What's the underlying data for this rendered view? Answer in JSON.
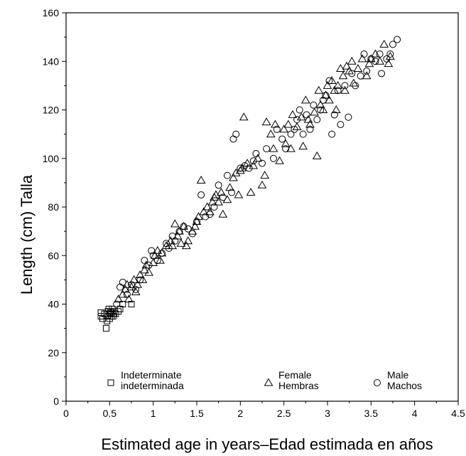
{
  "chart_data": {
    "type": "scatter",
    "title": "",
    "xlabel": "Estimated age in years–Edad estimada en años",
    "ylabel": "Length (cm) Talla",
    "xlim": [
      0,
      4.5
    ],
    "ylim": [
      0,
      160
    ],
    "x_ticks": [
      "0",
      "0.5",
      "1",
      "1.5",
      "2",
      "2.5",
      "3",
      "3.5",
      "4",
      "4.5"
    ],
    "y_ticks": [
      "0",
      "20",
      "40",
      "60",
      "80",
      "100",
      "120",
      "140",
      "160"
    ],
    "grid": false,
    "legend_position": "bottom",
    "series": [
      {
        "name": "Indeterminate indeterminada",
        "legend_lines": [
          "Indeterminate",
          "indeterminada"
        ],
        "marker": "square",
        "points": [
          [
            0.4,
            35
          ],
          [
            0.4,
            36.5
          ],
          [
            0.42,
            34
          ],
          [
            0.44,
            36
          ],
          [
            0.46,
            30
          ],
          [
            0.47,
            33
          ],
          [
            0.48,
            35
          ],
          [
            0.48,
            37
          ],
          [
            0.49,
            38
          ],
          [
            0.5,
            36
          ],
          [
            0.5,
            34
          ],
          [
            0.51,
            37
          ],
          [
            0.52,
            35
          ],
          [
            0.52,
            36.5
          ],
          [
            0.53,
            38
          ],
          [
            0.54,
            35
          ],
          [
            0.55,
            37
          ],
          [
            0.55,
            36
          ],
          [
            0.57,
            36
          ],
          [
            0.6,
            37
          ],
          [
            0.62,
            38
          ],
          [
            0.65,
            40
          ],
          [
            0.75,
            40
          ]
        ]
      },
      {
        "name": "Female Hembras",
        "legend_lines": [
          "Female",
          "Hembras"
        ],
        "marker": "triangle",
        "points": [
          [
            0.6,
            42
          ],
          [
            0.65,
            44
          ],
          [
            0.68,
            46
          ],
          [
            0.7,
            48
          ],
          [
            0.72,
            42
          ],
          [
            0.75,
            47
          ],
          [
            0.78,
            50
          ],
          [
            0.8,
            45
          ],
          [
            0.82,
            48
          ],
          [
            0.85,
            52
          ],
          [
            0.88,
            50
          ],
          [
            0.9,
            54
          ],
          [
            0.92,
            56
          ],
          [
            0.95,
            53
          ],
          [
            1.0,
            57
          ],
          [
            1.02,
            60
          ],
          [
            1.05,
            62
          ],
          [
            1.08,
            58
          ],
          [
            1.1,
            61
          ],
          [
            1.15,
            64
          ],
          [
            1.2,
            66
          ],
          [
            1.22,
            64
          ],
          [
            1.25,
            73
          ],
          [
            1.28,
            68
          ],
          [
            1.3,
            70
          ],
          [
            1.32,
            65
          ],
          [
            1.35,
            72
          ],
          [
            1.38,
            64
          ],
          [
            1.4,
            66
          ],
          [
            1.45,
            70
          ],
          [
            1.48,
            72
          ],
          [
            1.5,
            74
          ],
          [
            1.52,
            76
          ],
          [
            1.55,
            91
          ],
          [
            1.58,
            78
          ],
          [
            1.62,
            80
          ],
          [
            1.65,
            78
          ],
          [
            1.68,
            82
          ],
          [
            1.7,
            84
          ],
          [
            1.72,
            85
          ],
          [
            1.75,
            82
          ],
          [
            1.78,
            86
          ],
          [
            1.8,
            77
          ],
          [
            1.85,
            83
          ],
          [
            1.88,
            88
          ],
          [
            1.92,
            92
          ],
          [
            1.95,
            94
          ],
          [
            1.98,
            85
          ],
          [
            2.0,
            95
          ],
          [
            2.02,
            96
          ],
          [
            2.04,
            117
          ],
          [
            2.08,
            98
          ],
          [
            2.12,
            86
          ],
          [
            2.15,
            97
          ],
          [
            2.2,
            100
          ],
          [
            2.25,
            89
          ],
          [
            2.28,
            93
          ],
          [
            2.3,
            115
          ],
          [
            2.35,
            110
          ],
          [
            2.38,
            104
          ],
          [
            2.4,
            114
          ],
          [
            2.45,
            99
          ],
          [
            2.5,
            112
          ],
          [
            2.52,
            106
          ],
          [
            2.55,
            114
          ],
          [
            2.58,
            104
          ],
          [
            2.6,
            118
          ],
          [
            2.65,
            113
          ],
          [
            2.7,
            117
          ],
          [
            2.72,
            105
          ],
          [
            2.75,
            124
          ],
          [
            2.78,
            116
          ],
          [
            2.8,
            114
          ],
          [
            2.85,
            119
          ],
          [
            2.88,
            101
          ],
          [
            2.9,
            128
          ],
          [
            2.92,
            122
          ],
          [
            2.95,
            120
          ],
          [
            2.98,
            126
          ],
          [
            3.0,
            130
          ],
          [
            3.02,
            124
          ],
          [
            3.05,
            132
          ],
          [
            3.08,
            128
          ],
          [
            3.1,
            120
          ],
          [
            3.12,
            130
          ],
          [
            3.15,
            137
          ],
          [
            3.18,
            134
          ],
          [
            3.2,
            128
          ],
          [
            3.22,
            138
          ],
          [
            3.25,
            136
          ],
          [
            3.28,
            140
          ],
          [
            3.3,
            131
          ],
          [
            3.35,
            137
          ],
          [
            3.4,
            141
          ],
          [
            3.45,
            134
          ],
          [
            3.48,
            139
          ],
          [
            3.5,
            141
          ],
          [
            3.55,
            143
          ],
          [
            3.6,
            140
          ],
          [
            3.65,
            147
          ],
          [
            3.7,
            139
          ],
          [
            3.72,
            142
          ]
        ]
      },
      {
        "name": "Male Machos",
        "legend_lines": [
          "Male",
          "Machos"
        ],
        "marker": "circle",
        "points": [
          [
            0.58,
            40
          ],
          [
            0.62,
            47
          ],
          [
            0.65,
            49
          ],
          [
            0.7,
            44
          ],
          [
            0.75,
            48
          ],
          [
            0.8,
            46
          ],
          [
            0.85,
            50
          ],
          [
            0.9,
            58
          ],
          [
            0.95,
            56
          ],
          [
            0.98,
            62
          ],
          [
            1.0,
            60
          ],
          [
            1.05,
            58
          ],
          [
            1.1,
            61
          ],
          [
            1.15,
            65
          ],
          [
            1.18,
            63
          ],
          [
            1.22,
            68
          ],
          [
            1.25,
            66
          ],
          [
            1.3,
            70
          ],
          [
            1.35,
            72
          ],
          [
            1.4,
            71
          ],
          [
            1.45,
            69
          ],
          [
            1.5,
            74
          ],
          [
            1.55,
            85
          ],
          [
            1.6,
            76
          ],
          [
            1.65,
            77
          ],
          [
            1.7,
            80
          ],
          [
            1.75,
            89
          ],
          [
            1.8,
            84
          ],
          [
            1.85,
            93
          ],
          [
            1.9,
            86
          ],
          [
            1.92,
            108
          ],
          [
            1.95,
            110
          ],
          [
            2.0,
            96
          ],
          [
            2.05,
            97
          ],
          [
            2.1,
            96
          ],
          [
            2.15,
            99
          ],
          [
            2.18,
            102
          ],
          [
            2.25,
            98
          ],
          [
            2.3,
            104
          ],
          [
            2.38,
            100
          ],
          [
            2.42,
            112
          ],
          [
            2.48,
            108
          ],
          [
            2.52,
            104
          ],
          [
            2.58,
            110
          ],
          [
            2.62,
            112
          ],
          [
            2.65,
            116
          ],
          [
            2.68,
            120
          ],
          [
            2.72,
            110
          ],
          [
            2.76,
            118
          ],
          [
            2.8,
            112
          ],
          [
            2.84,
            122
          ],
          [
            2.88,
            116
          ],
          [
            2.92,
            120
          ],
          [
            2.95,
            124
          ],
          [
            2.98,
            126
          ],
          [
            3.02,
            132
          ],
          [
            3.05,
            110
          ],
          [
            3.08,
            118
          ],
          [
            3.12,
            128
          ],
          [
            3.15,
            114
          ],
          [
            3.2,
            130
          ],
          [
            3.24,
            117
          ],
          [
            3.28,
            135
          ],
          [
            3.32,
            130
          ],
          [
            3.38,
            134
          ],
          [
            3.42,
            143
          ],
          [
            3.45,
            136
          ],
          [
            3.5,
            141
          ],
          [
            3.55,
            140
          ],
          [
            3.6,
            143
          ],
          [
            3.62,
            135
          ],
          [
            3.68,
            141
          ],
          [
            3.72,
            143
          ],
          [
            3.75,
            147
          ],
          [
            3.8,
            149
          ]
        ]
      }
    ]
  }
}
